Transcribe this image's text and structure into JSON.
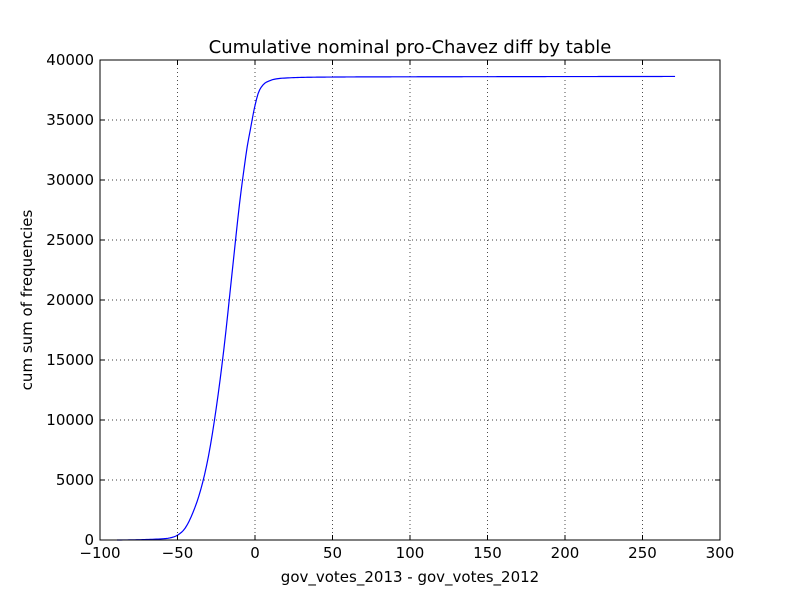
{
  "chart_data": {
    "type": "line",
    "title": "Cumulative nominal pro-Chavez diff by table",
    "xlabel": "gov_votes_2013 - gov_votes_2012",
    "ylabel": "cum sum of frequencies",
    "xlim": [
      -100,
      300
    ],
    "ylim": [
      0,
      40000
    ],
    "xticks": [
      -100,
      -50,
      0,
      50,
      100,
      150,
      200,
      250,
      300
    ],
    "xtick_labels": [
      "−100",
      "−50",
      "0",
      "50",
      "100",
      "150",
      "200",
      "250",
      "300"
    ],
    "yticks": [
      0,
      5000,
      10000,
      15000,
      20000,
      25000,
      30000,
      35000,
      40000
    ],
    "ytick_labels": [
      "0",
      "5000",
      "10000",
      "15000",
      "20000",
      "25000",
      "30000",
      "35000",
      "40000"
    ],
    "grid": true,
    "series": [
      {
        "color": "#0000ff",
        "x": [
          -89,
          -80,
          -70,
          -60,
          -55,
          -50,
          -45,
          -40,
          -35,
          -30,
          -25,
          -20,
          -15,
          -10,
          -7,
          -5,
          -3,
          -1,
          0,
          2,
          5,
          10,
          15,
          20,
          30,
          50,
          100,
          150,
          200,
          250,
          271
        ],
        "y": [
          0,
          10,
          40,
          100,
          170,
          400,
          1000,
          2300,
          4200,
          7000,
          11000,
          16000,
          22000,
          28000,
          31000,
          32800,
          34200,
          35600,
          36200,
          37200,
          37900,
          38300,
          38450,
          38500,
          38550,
          38580,
          38600,
          38610,
          38620,
          38625,
          38630
        ]
      }
    ]
  }
}
